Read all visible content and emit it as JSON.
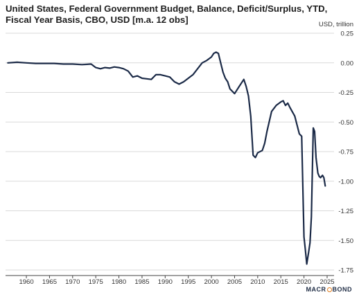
{
  "title": "United States, Federal Government Budget, Balance, Deficit/Surplus, YTD, Fiscal Year Basis, CBO, USD [m.a. 12 obs]",
  "unit_label": "USD, trillion",
  "brand": {
    "left": "MACR",
    "right": "BOND"
  },
  "colors": {
    "line": "#1b2a47",
    "grid": "#d9d9d9",
    "logo_accent": "#e07b1a"
  },
  "chart_data": {
    "type": "line",
    "title": "United States, Federal Government Budget, Balance, Deficit/Surplus, YTD, Fiscal Year Basis, CBO, USD [m.a. 12 obs]",
    "ylabel": "USD, trillion",
    "xlabel": "",
    "xlim": [
      1955.5,
      2026.5
    ],
    "ylim": [
      -1.75,
      0.25
    ],
    "y_axis_position": "right",
    "grid": "horizontal",
    "xticks": [
      1960,
      1965,
      1970,
      1975,
      1980,
      1985,
      1990,
      1995,
      2000,
      2005,
      2010,
      2015,
      2020,
      2025
    ],
    "yticks": [
      0.25,
      0.0,
      -0.25,
      -0.5,
      -0.75,
      -1.0,
      -1.25,
      -1.5,
      -1.75
    ],
    "ytick_labels": [
      "0.25",
      "0.00",
      "-0.25",
      "-0.50",
      "-0.75",
      "-1.00",
      "-1.25",
      "-1.50",
      "-1.75"
    ],
    "series": [
      {
        "x": [
          1956,
          1958,
          1960,
          1962,
          1964,
          1966,
          1968,
          1970,
          1972,
          1974,
          1975,
          1976,
          1977,
          1978,
          1979,
          1980,
          1981,
          1982,
          1983,
          1984,
          1985,
          1986,
          1987,
          1988,
          1989,
          1990,
          1991,
          1992,
          1993,
          1994,
          1995,
          1996,
          1997,
          1998,
          1999,
          2000,
          2000.5,
          2001,
          2001.5,
          2002,
          2002.5,
          2003,
          2003.5,
          2004,
          2005,
          2006,
          2007,
          2007.5,
          2008,
          2008.5,
          2009,
          2009.5,
          2010,
          2011,
          2011.5,
          2012,
          2013,
          2014,
          2015,
          2015.5,
          2016,
          2016.5,
          2017,
          2018,
          2019,
          2019.5,
          2020,
          2020.3,
          2020.6,
          2021,
          2021.3,
          2021.6,
          2022,
          2022.3,
          2022.6,
          2023,
          2023.3,
          2023.6,
          2024,
          2024.3,
          2024.6
        ],
        "y": [
          0.0,
          0.005,
          0.0,
          -0.005,
          -0.005,
          -0.005,
          -0.01,
          -0.01,
          -0.015,
          -0.01,
          -0.04,
          -0.05,
          -0.04,
          -0.045,
          -0.035,
          -0.04,
          -0.05,
          -0.07,
          -0.12,
          -0.11,
          -0.13,
          -0.135,
          -0.14,
          -0.1,
          -0.1,
          -0.11,
          -0.12,
          -0.16,
          -0.18,
          -0.16,
          -0.13,
          -0.1,
          -0.05,
          0.0,
          0.02,
          0.05,
          0.08,
          0.09,
          0.08,
          0.0,
          -0.08,
          -0.13,
          -0.16,
          -0.22,
          -0.26,
          -0.2,
          -0.14,
          -0.2,
          -0.28,
          -0.45,
          -0.78,
          -0.8,
          -0.76,
          -0.74,
          -0.68,
          -0.58,
          -0.41,
          -0.36,
          -0.33,
          -0.32,
          -0.36,
          -0.34,
          -0.38,
          -0.45,
          -0.6,
          -0.62,
          -1.47,
          -1.58,
          -1.7,
          -1.6,
          -1.52,
          -1.3,
          -0.55,
          -0.58,
          -0.8,
          -0.93,
          -0.96,
          -0.97,
          -0.95,
          -0.97,
          -1.04
        ]
      }
    ]
  }
}
